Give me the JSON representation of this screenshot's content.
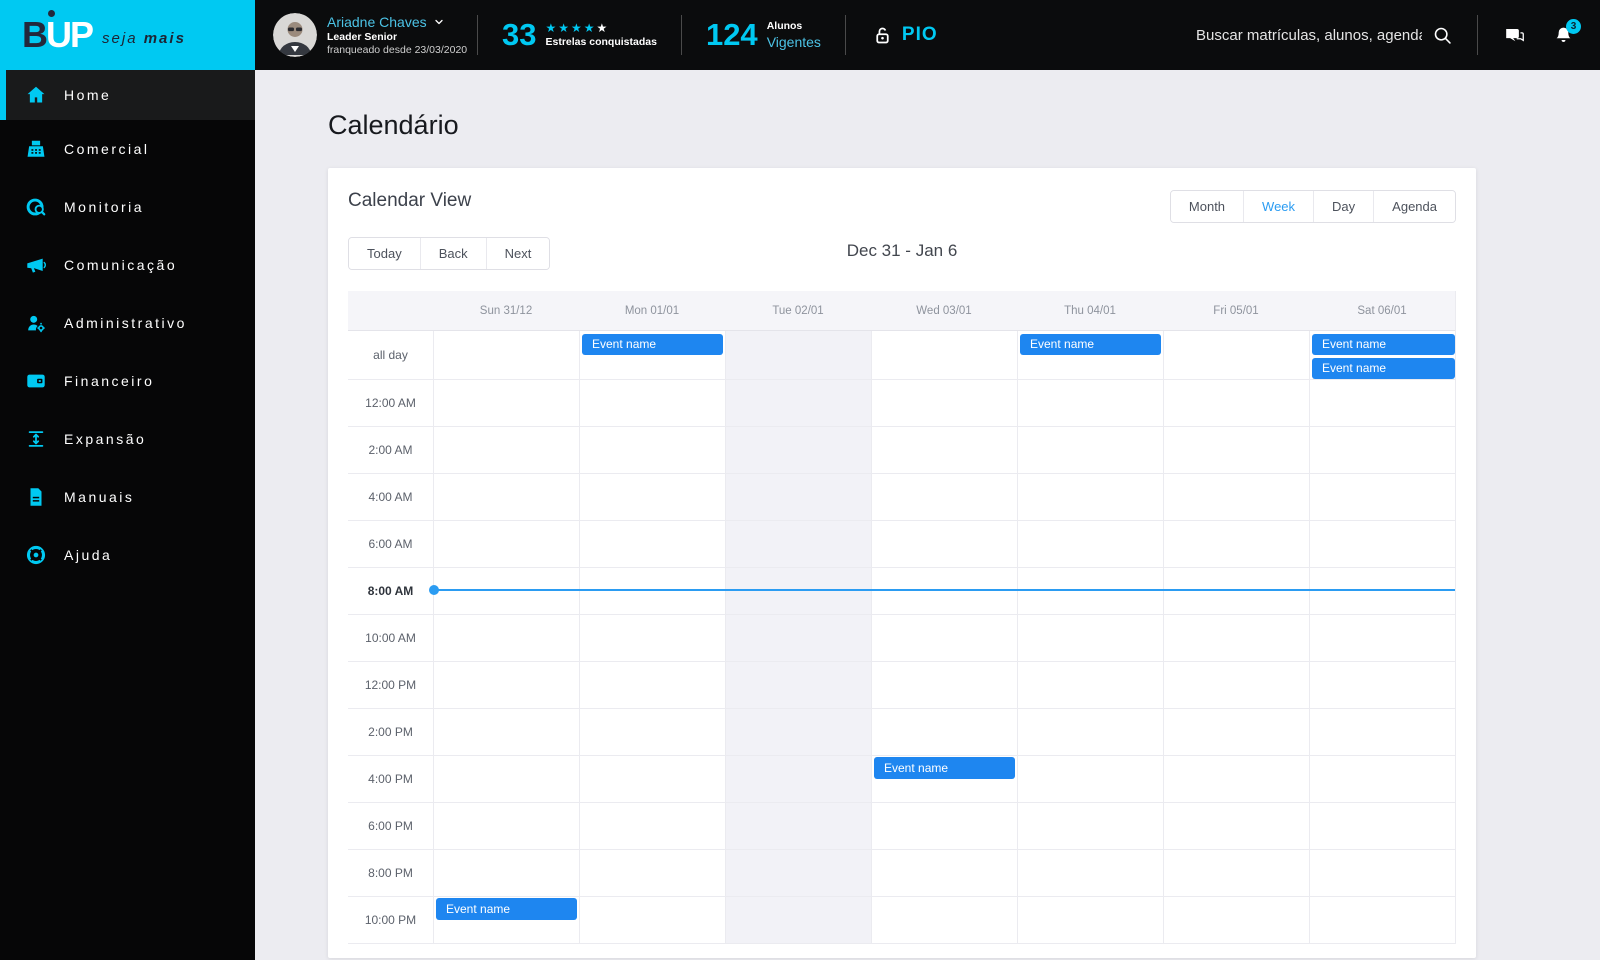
{
  "brand": {
    "logo_b": "B",
    "logo_up": "UP",
    "tagline_light": "seja",
    "tagline_bold": "mais"
  },
  "topbar": {
    "user": {
      "name": "Ariadne Chaves",
      "role": "Leader Senior",
      "since": "franqueado desde 23/03/2020"
    },
    "stats": [
      {
        "value": "33",
        "label": "Estrelas conquistadas",
        "stars_filled": 4,
        "stars_total": 5
      },
      {
        "value": "124",
        "label_top": "Alunos",
        "label_bottom": "Vigentes"
      }
    ],
    "pio_label": "PIO",
    "search_placeholder": "Buscar matrículas, alunos, agenda...",
    "notification_count": "3"
  },
  "sidebar": {
    "items": [
      {
        "label": "Home",
        "icon": "home",
        "active": true
      },
      {
        "label": "Comercial",
        "icon": "register",
        "active": false
      },
      {
        "label": "Monitoria",
        "icon": "monitor",
        "active": false
      },
      {
        "label": "Comunicação",
        "icon": "megaphone",
        "active": false
      },
      {
        "label": "Administrativo",
        "icon": "user-gear",
        "active": false
      },
      {
        "label": "Financeiro",
        "icon": "wallet",
        "active": false
      },
      {
        "label": "Expansão",
        "icon": "expand",
        "active": false
      },
      {
        "label": "Manuais",
        "icon": "doc",
        "active": false
      },
      {
        "label": "Ajuda",
        "icon": "lifebuoy",
        "active": false
      }
    ]
  },
  "page": {
    "title": "Calendário"
  },
  "calendar": {
    "card_title": "Calendar View",
    "views": [
      {
        "label": "Month",
        "active": false
      },
      {
        "label": "Week",
        "active": true
      },
      {
        "label": "Day",
        "active": false
      },
      {
        "label": "Agenda",
        "active": false
      }
    ],
    "nav_buttons": [
      "Today",
      "Back",
      "Next"
    ],
    "range_title": "Dec 31 - Jan 6",
    "days": [
      "Sun 31/12",
      "Mon 01/01",
      "Tue 02/01",
      "Wed 03/01",
      "Thu 04/01",
      "Fri 05/01",
      "Sat 06/01"
    ],
    "today_day_index": 2,
    "allday_label": "all day",
    "time_rows": [
      "12:00 AM",
      "2:00 AM",
      "4:00 AM",
      "6:00 AM",
      "8:00 AM",
      "10:00 AM",
      "12:00 PM",
      "2:00 PM",
      "4:00 PM",
      "6:00 PM",
      "8:00 PM",
      "10:00 PM"
    ],
    "current_time_row": "8:00 AM",
    "events": [
      {
        "day": 1,
        "row": "all day",
        "label": "Event name"
      },
      {
        "day": 4,
        "row": "all day",
        "label": "Event name"
      },
      {
        "day": 6,
        "row": "all day",
        "label": "Event name"
      },
      {
        "day": 6,
        "row": "all day",
        "label": "Event name"
      },
      {
        "day": 3,
        "row": "4:00 PM",
        "label": "Event name"
      },
      {
        "day": 0,
        "row": "10:00 PM",
        "label": "Event name"
      }
    ]
  },
  "colors": {
    "accent": "#00c9f2",
    "event": "#1e86f0",
    "now_line": "#2b9cf2"
  }
}
